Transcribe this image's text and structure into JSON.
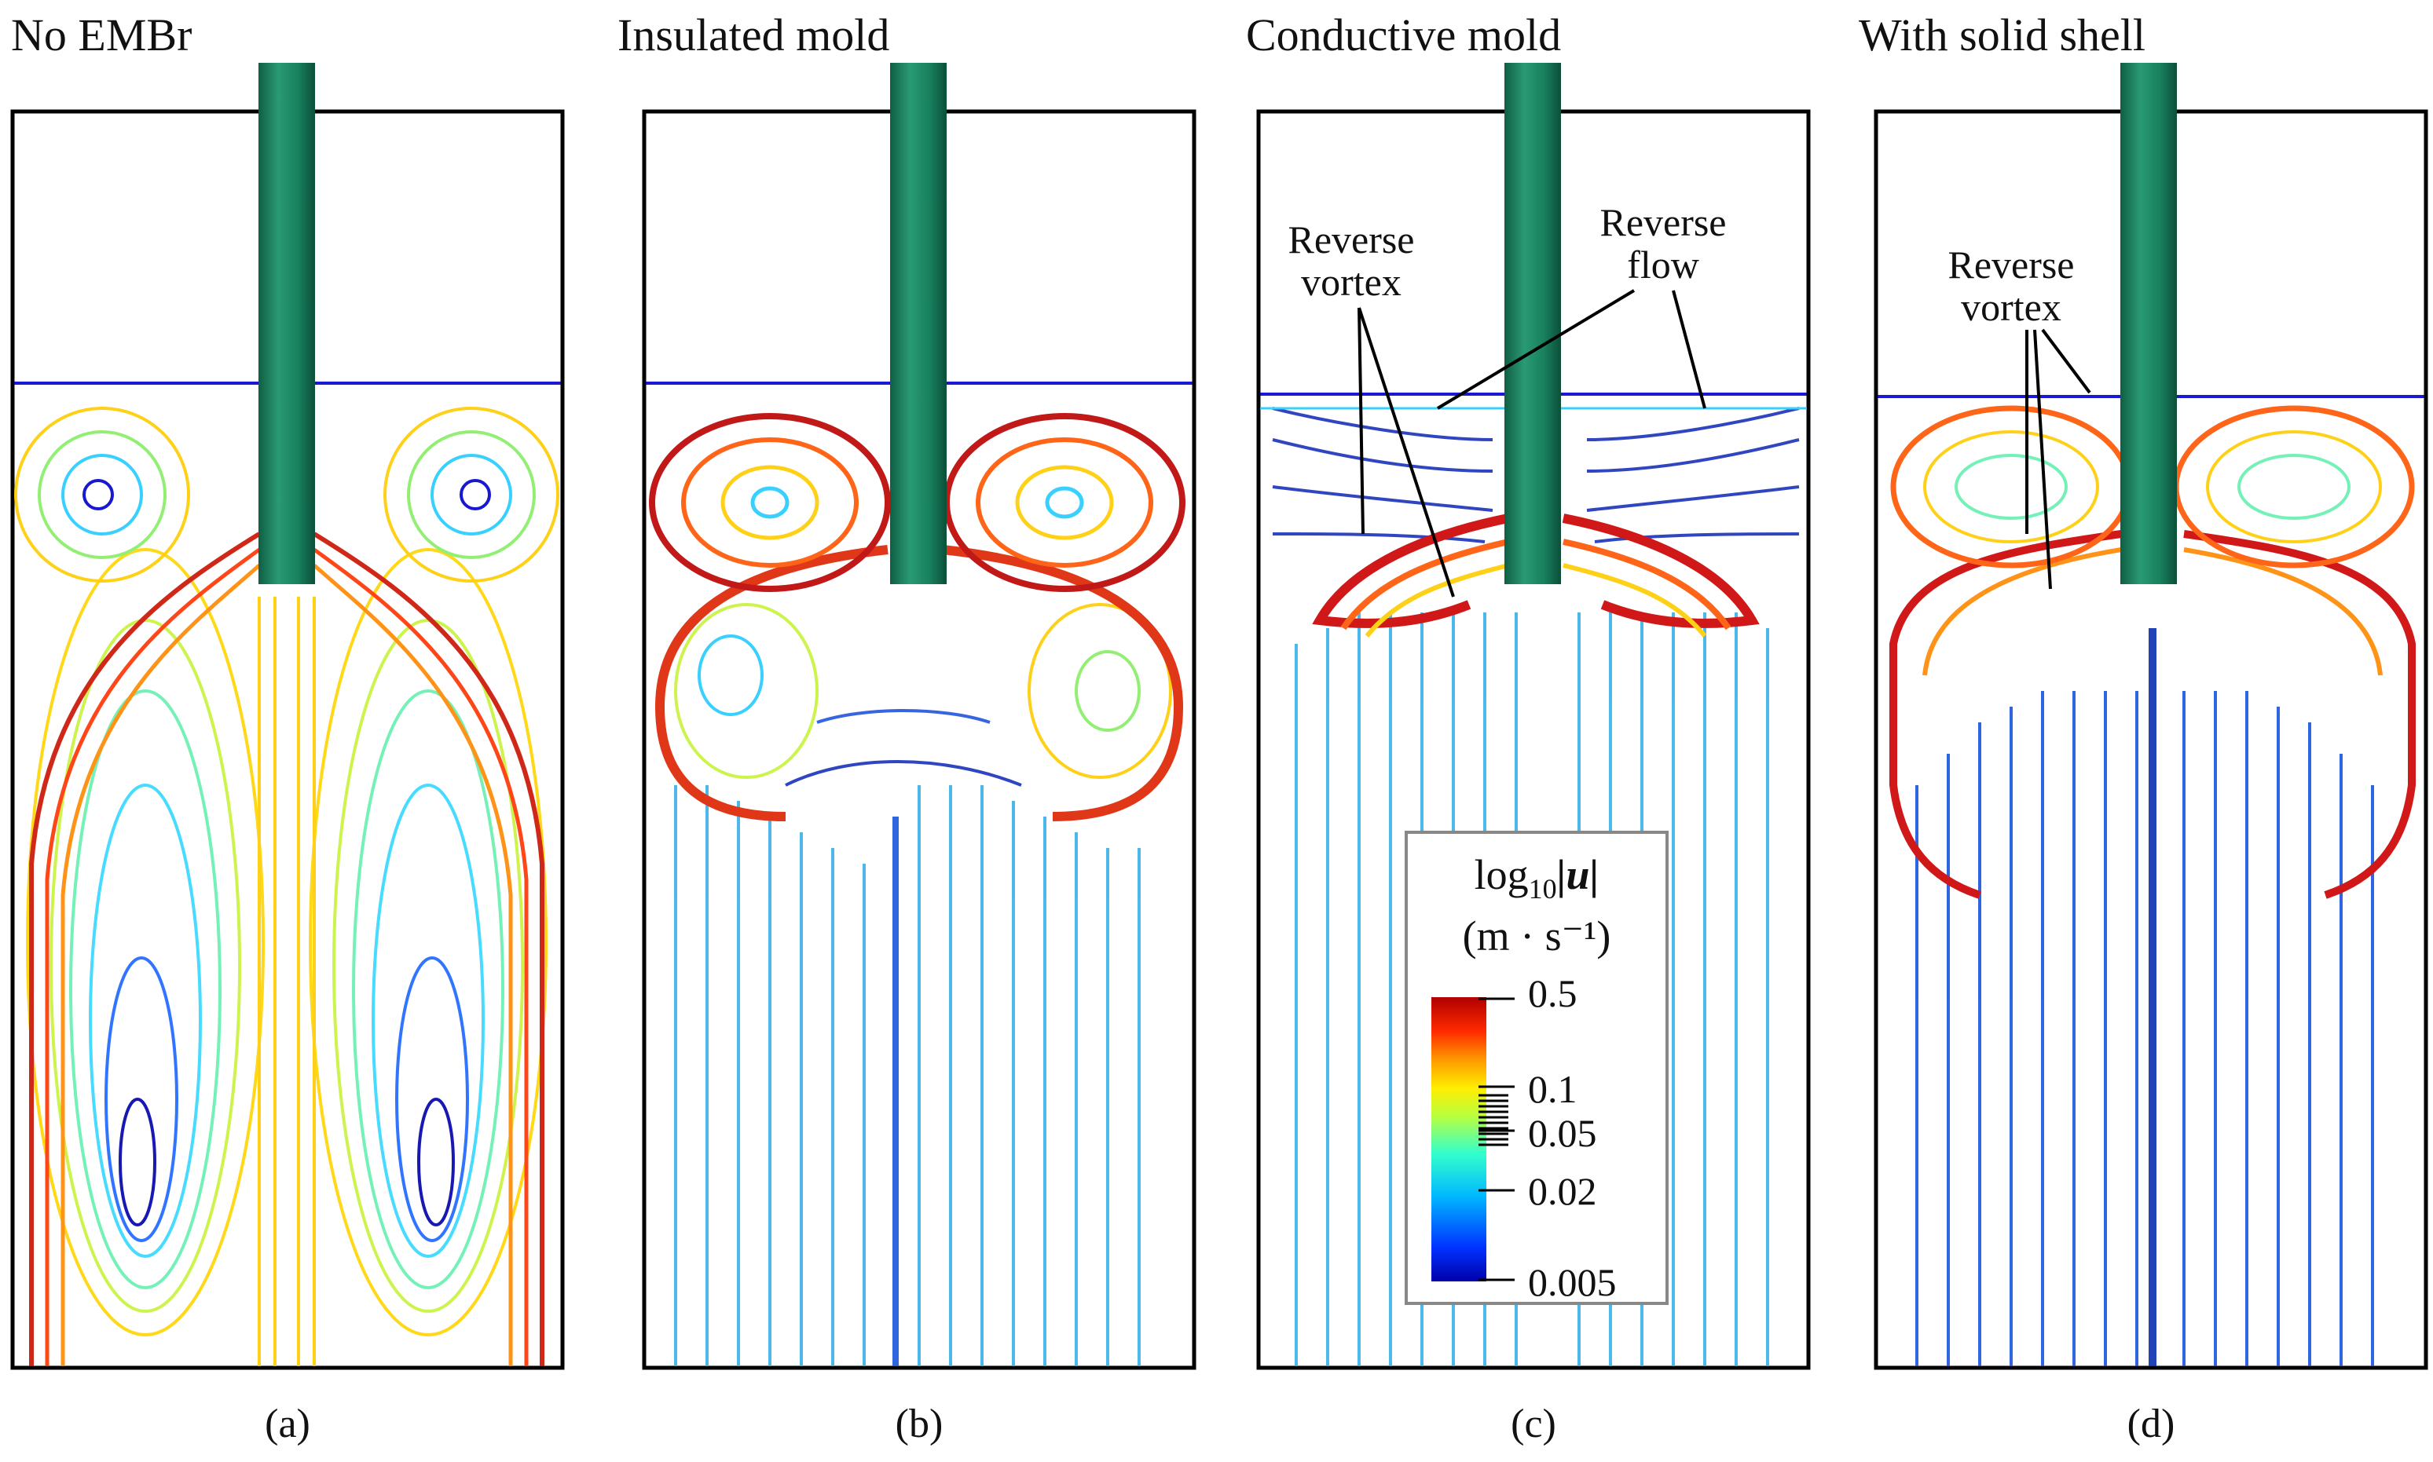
{
  "panels": [
    {
      "title": "No EMBr",
      "caption": "(a)",
      "annotations": []
    },
    {
      "title": "Insulated mold",
      "caption": "(b)",
      "annotations": []
    },
    {
      "title": "Conductive mold",
      "caption": "(c)",
      "annotations": [
        {
          "line1": "Reverse",
          "line2": "vortex"
        },
        {
          "line1": "Reverse",
          "line2": "flow"
        }
      ]
    },
    {
      "title": "With solid shell",
      "caption": "(d)",
      "annotations": [
        {
          "line1": "Reverse",
          "line2": "vortex"
        }
      ]
    }
  ],
  "colorbar": {
    "title_prefix": "log",
    "title_sub": "10",
    "title_quantity": "|u|",
    "units": "(m · s⁻¹)",
    "ticks": [
      "0.5",
      "0.1",
      "0.05",
      "0.02",
      "0.005"
    ],
    "colors": [
      "#b00000",
      "#ff2a00",
      "#ff9900",
      "#ffee00",
      "#b8ff40",
      "#33ffcc",
      "#00b8ff",
      "#0044ff",
      "#0000aa"
    ]
  },
  "nozzle_color": "#18805e"
}
